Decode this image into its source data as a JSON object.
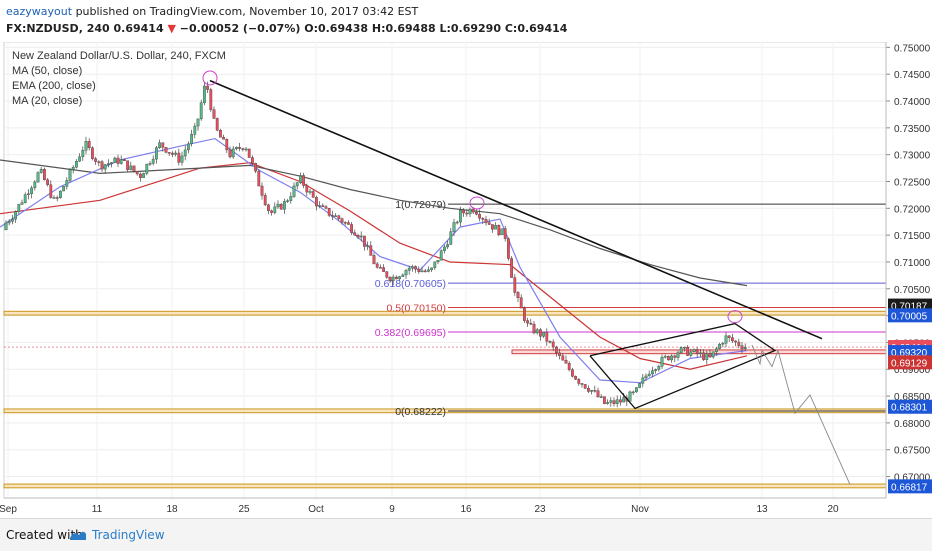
{
  "publisher": {
    "user": "eazywayout",
    "text": "published on TradingView.com, November 10, 2017 03:42 EST"
  },
  "quote": {
    "symbol": "FX:NZDUSD, 240",
    "last": "0.69414",
    "change": "−0.00052 (−0.07%)",
    "open": "O:0.69438",
    "high": "H:0.69488",
    "low": "L:0.69290",
    "close": "C:0.69414"
  },
  "legend": {
    "title": "New Zealand Dollar/U.S. Dollar, 240, FXCM",
    "ma50": "MA (50, close)",
    "ema200": "EMA (200, close)",
    "ma20": "MA (20, close)"
  },
  "footer": {
    "created": "Created with",
    "brand": "TradingView"
  },
  "colors": {
    "bull": "#53b987",
    "bear": "#eb4d5c",
    "ema200": "#555555",
    "ma50": "#cc3333",
    "ma20": "#7f7ff0",
    "fib": "#cc33cc",
    "zone": "#f5d08a",
    "red_zone": "#f5b9b9",
    "price_bg": "#1d56d6"
  },
  "chart_data": {
    "type": "candlestick",
    "title": "New Zealand Dollar/U.S. Dollar, 240, FXCM",
    "x_ticks": [
      "Sep",
      "11",
      "18",
      "25",
      "Oct",
      "9",
      "16",
      "23",
      "Nov",
      "13",
      "20"
    ],
    "y_ticks": [
      "0.75000",
      "0.74500",
      "0.74000",
      "0.73500",
      "0.73000",
      "0.72500",
      "0.72000",
      "0.71500",
      "0.71000",
      "0.70500",
      "0.70000",
      "0.69500",
      "0.69000",
      "0.68500",
      "0.68000",
      "0.67500",
      "0.67000"
    ],
    "ylim": [
      0.666,
      0.751
    ],
    "price_path": [
      [
        0,
        0.716
      ],
      [
        14,
        0.719
      ],
      [
        40,
        0.727
      ],
      [
        55,
        0.721
      ],
      [
        70,
        0.7265
      ],
      [
        85,
        0.732
      ],
      [
        100,
        0.728
      ],
      [
        120,
        0.729
      ],
      [
        140,
        0.726
      ],
      [
        160,
        0.732
      ],
      [
        180,
        0.729
      ],
      [
        196,
        0.735
      ],
      [
        206,
        0.7438
      ],
      [
        215,
        0.735
      ],
      [
        230,
        0.73
      ],
      [
        245,
        0.732
      ],
      [
        258,
        0.725
      ],
      [
        270,
        0.719
      ],
      [
        285,
        0.721
      ],
      [
        300,
        0.7255
      ],
      [
        320,
        0.72
      ],
      [
        340,
        0.718
      ],
      [
        360,
        0.715
      ],
      [
        378,
        0.7085
      ],
      [
        392,
        0.707
      ],
      [
        410,
        0.709
      ],
      [
        430,
        0.708
      ],
      [
        445,
        0.713
      ],
      [
        460,
        0.719
      ],
      [
        474,
        0.72
      ],
      [
        490,
        0.717
      ],
      [
        505,
        0.715
      ],
      [
        515,
        0.704
      ],
      [
        528,
        0.698
      ],
      [
        545,
        0.696
      ],
      [
        560,
        0.692
      ],
      [
        578,
        0.688
      ],
      [
        592,
        0.686
      ],
      [
        605,
        0.6835
      ],
      [
        620,
        0.684
      ],
      [
        635,
        0.6855
      ],
      [
        650,
        0.69
      ],
      [
        665,
        0.692
      ],
      [
        680,
        0.6935
      ],
      [
        695,
        0.693
      ],
      [
        710,
        0.692
      ],
      [
        725,
        0.696
      ],
      [
        735,
        0.695
      ],
      [
        747,
        0.6941
      ]
    ],
    "series": [
      {
        "name": "MA (50, close)",
        "points": [
          [
            0,
            0.719
          ],
          [
            100,
            0.7215
          ],
          [
            200,
            0.7275
          ],
          [
            250,
            0.7285
          ],
          [
            300,
            0.725
          ],
          [
            350,
            0.7195
          ],
          [
            400,
            0.7135
          ],
          [
            450,
            0.71
          ],
          [
            510,
            0.7095
          ],
          [
            560,
            0.702
          ],
          [
            600,
            0.696
          ],
          [
            640,
            0.692
          ],
          [
            690,
            0.69
          ],
          [
            747,
            0.6925
          ]
        ]
      },
      {
        "name": "EMA (200, close)",
        "points": [
          [
            0,
            0.729
          ],
          [
            100,
            0.7265
          ],
          [
            200,
            0.7275
          ],
          [
            250,
            0.728
          ],
          [
            300,
            0.726
          ],
          [
            350,
            0.7235
          ],
          [
            400,
            0.7215
          ],
          [
            450,
            0.72
          ],
          [
            500,
            0.719
          ],
          [
            550,
            0.716
          ],
          [
            600,
            0.7125
          ],
          [
            650,
            0.7095
          ],
          [
            700,
            0.707
          ],
          [
            747,
            0.7056
          ]
        ]
      },
      {
        "name": "MA (20, close)",
        "points": [
          [
            0,
            0.7165
          ],
          [
            60,
            0.724
          ],
          [
            120,
            0.729
          ],
          [
            190,
            0.732
          ],
          [
            215,
            0.733
          ],
          [
            260,
            0.727
          ],
          [
            300,
            0.723
          ],
          [
            340,
            0.7175
          ],
          [
            380,
            0.711
          ],
          [
            420,
            0.7085
          ],
          [
            460,
            0.7165
          ],
          [
            500,
            0.718
          ],
          [
            520,
            0.709
          ],
          [
            560,
            0.696
          ],
          [
            600,
            0.688
          ],
          [
            640,
            0.6875
          ],
          [
            690,
            0.692
          ],
          [
            747,
            0.6935
          ]
        ]
      }
    ],
    "fib_levels": [
      {
        "label": "1(0.72079)",
        "value": 0.72079
      },
      {
        "label": "0.618(0.70605)",
        "value": 0.70605
      },
      {
        "label": "0.5(0.70150)",
        "value": 0.7015
      },
      {
        "label": "0.382(0.69695)",
        "value": 0.69695
      },
      {
        "label": "0(0.68222)",
        "value": 0.68222
      }
    ],
    "price_labels": [
      {
        "text": "0.70187",
        "value": 0.70187,
        "color": "#1a1a1a"
      },
      {
        "text": "0.70005",
        "value": 0.70005,
        "color": "#1d56d6"
      },
      {
        "text": "0.69414",
        "value": 0.69414,
        "color": "#eb4d5c"
      },
      {
        "text": "01:17:38",
        "value": 0.6916,
        "color": "#eb4d5c"
      },
      {
        "text": "0.69320",
        "value": 0.6932,
        "color": "#1d56d6"
      },
      {
        "text": "0.69129",
        "value": 0.69129,
        "color": "#cc3333"
      },
      {
        "text": "0.68301",
        "value": 0.68301,
        "color": "#1d56d6"
      },
      {
        "text": "0.66817",
        "value": 0.66817,
        "color": "#1d56d6"
      }
    ],
    "grid": true
  }
}
